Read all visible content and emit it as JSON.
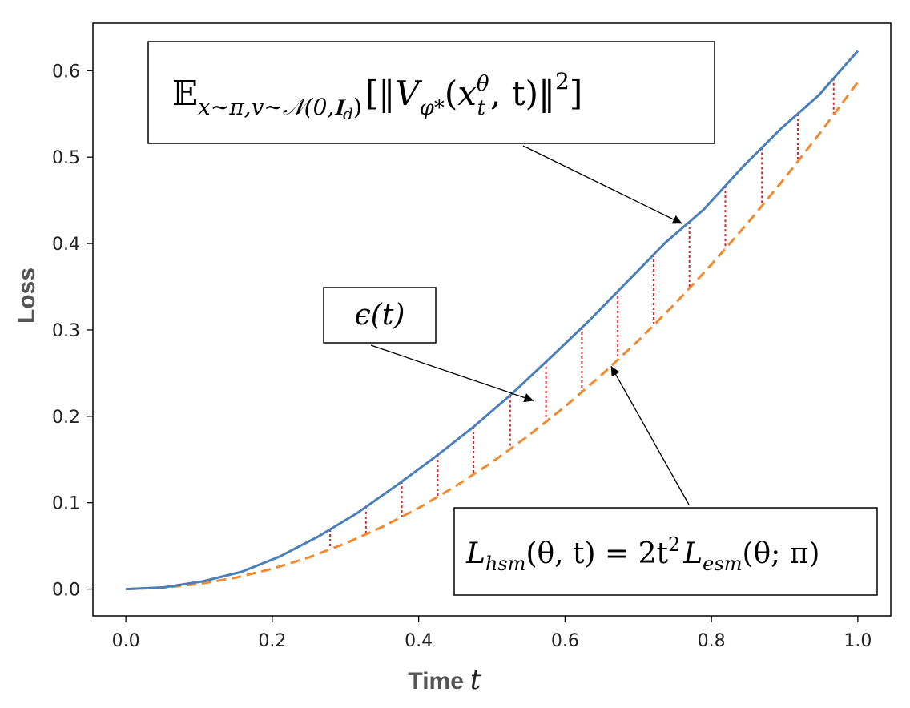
{
  "chart_data": {
    "type": "line",
    "xlabel": "Time",
    "xlabel_var": "t",
    "ylabel": "Loss",
    "xlim": [
      -0.045,
      1.045
    ],
    "ylim": [
      -0.031,
      0.655
    ],
    "xticks": [
      "0.0",
      "0.2",
      "0.4",
      "0.6",
      "0.8",
      "1.0"
    ],
    "yticks": [
      "0.0",
      "0.1",
      "0.2",
      "0.3",
      "0.4",
      "0.5",
      "0.6"
    ],
    "xtick_values": [
      0.0,
      0.2,
      0.4,
      0.6,
      0.8,
      1.0
    ],
    "ytick_values": [
      0.0,
      0.1,
      0.2,
      0.3,
      0.4,
      0.5,
      0.6
    ],
    "grid": false,
    "series": [
      {
        "color": "#4a7fba",
        "style": "solid",
        "x": [
          0.0,
          0.052,
          0.105,
          0.158,
          0.211,
          0.263,
          0.316,
          0.368,
          0.421,
          0.474,
          0.526,
          0.579,
          0.632,
          0.684,
          0.737,
          0.789,
          0.842,
          0.895,
          0.947,
          1.0
        ],
        "y": [
          0.0,
          0.002,
          0.009,
          0.02,
          0.038,
          0.061,
          0.088,
          0.119,
          0.152,
          0.187,
          0.225,
          0.267,
          0.31,
          0.355,
          0.401,
          0.439,
          0.488,
          0.533,
          0.572,
          0.623
        ]
      },
      {
        "color": "#f08a30",
        "style": "dashed",
        "x": [
          0.0,
          0.05,
          0.1,
          0.15,
          0.2,
          0.25,
          0.3,
          0.35,
          0.4,
          0.45,
          0.5,
          0.55,
          0.6,
          0.65,
          0.7,
          0.75,
          0.8,
          0.85,
          0.9,
          0.95,
          1.0
        ],
        "y": [
          0.0,
          0.0015,
          0.0059,
          0.0132,
          0.0235,
          0.0367,
          0.0529,
          0.0719,
          0.0939,
          0.1189,
          0.1468,
          0.1776,
          0.2113,
          0.248,
          0.2876,
          0.3302,
          0.3757,
          0.4241,
          0.4755,
          0.5298,
          0.587
        ]
      }
    ],
    "gap_markers": {
      "color": "#d62728",
      "x": [
        0.279,
        0.328,
        0.377,
        0.426,
        0.475,
        0.525,
        0.574,
        0.623,
        0.672,
        0.721,
        0.77,
        0.819,
        0.869,
        0.918,
        0.967
      ]
    },
    "annotations": [
      {
        "label": "E_{x∼π, v∼N(0, I_d)}[‖V_{φ*}(x_t^θ, t)‖²]",
        "text_main": "𝔼",
        "text_sub": "x∼π,v∼𝒩(0,𝐈",
        "text_sub2": "d",
        "text_sub3": ")",
        "text_bracket_open": "[‖",
        "text_V": "V",
        "text_V_sub": "φ*",
        "text_args_open": "(",
        "text_x": "x",
        "text_x_sup": "θ",
        "text_x_sub": "t",
        "text_args_rest": ", t)‖",
        "text_power": "2",
        "text_close": "]",
        "target_x": 0.76,
        "target_y": 0.423
      },
      {
        "label": "ε(t)",
        "text": "ϵ(t)",
        "target_x": 0.557,
        "target_y": 0.218
      },
      {
        "label": "L_hsm(θ, t) = 2t² L_esm(θ; π)",
        "text_L1": "L",
        "text_L1_sub": "hsm",
        "text_mid": "(θ, t) = 2t",
        "text_sq": "2",
        "text_L2": "L",
        "text_L2_sub": "esm",
        "text_end": "(θ; π)",
        "target_x": 0.663,
        "target_y": 0.258
      }
    ]
  }
}
